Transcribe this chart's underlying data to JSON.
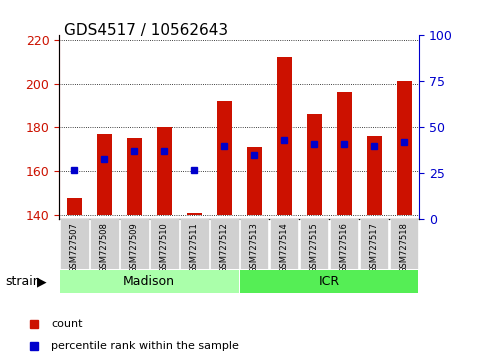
{
  "title": "GDS4517 / 10562643",
  "samples": [
    "GSM727507",
    "GSM727508",
    "GSM727509",
    "GSM727510",
    "GSM727511",
    "GSM727512",
    "GSM727513",
    "GSM727514",
    "GSM727515",
    "GSM727516",
    "GSM727517",
    "GSM727518"
  ],
  "counts": [
    148,
    177,
    175,
    180,
    141,
    192,
    171,
    212,
    186,
    196,
    176,
    201
  ],
  "percentiles": [
    27,
    33,
    37,
    37,
    27,
    40,
    35,
    43,
    41,
    41,
    40,
    42
  ],
  "ylim_left": [
    138,
    222
  ],
  "ylim_right": [
    0,
    100
  ],
  "yticks_left": [
    140,
    160,
    180,
    200,
    220
  ],
  "yticks_right": [
    0,
    25,
    50,
    75,
    100
  ],
  "bar_color": "#cc1100",
  "marker_color": "#0000cc",
  "grid_color": "#000000",
  "bg_color": "#ffffff",
  "tick_bg": "#d0d0d0",
  "madison_color": "#aaffaa",
  "icr_color": "#55ee55",
  "madison_samples": [
    "GSM727507",
    "GSM727508",
    "GSM727509",
    "GSM727510",
    "GSM727511",
    "GSM727512"
  ],
  "icr_samples": [
    "GSM727513",
    "GSM727514",
    "GSM727515",
    "GSM727516",
    "GSM727517",
    "GSM727518"
  ],
  "left_axis_color": "#cc1100",
  "right_axis_color": "#0000cc",
  "bar_width": 0.5,
  "baseline": 140
}
